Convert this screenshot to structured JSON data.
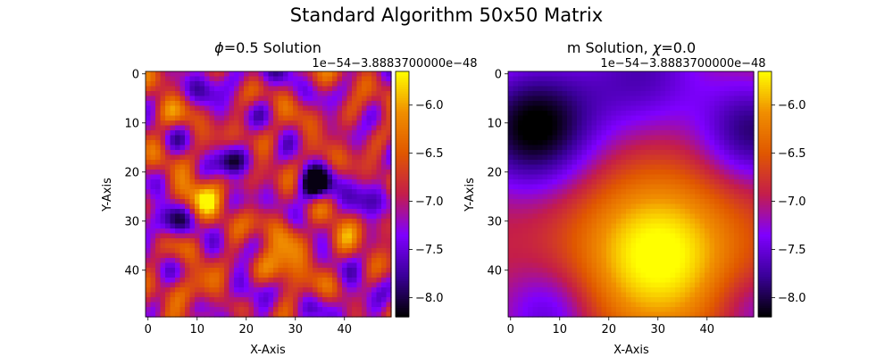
{
  "figure": {
    "suptitle": "Standard Algorithm 50x50 Matrix"
  },
  "colors": {
    "colormap": "gnuplot",
    "stops": [
      "#000000",
      "#3a0099",
      "#7f00ff",
      "#c41d4a",
      "#e05700",
      "#f08f00",
      "#ffff00"
    ]
  },
  "chart_data": [
    {
      "type": "heatmap",
      "title_prefix": "ϕ",
      "title_suffix": "=0.5 Solution",
      "xlabel": "X-Axis",
      "ylabel": "Y-Axis",
      "grid_size": [
        50,
        50
      ],
      "xlim": [
        0,
        49
      ],
      "ylim": [
        49,
        0
      ],
      "x_ticks": [
        "0",
        "10",
        "20",
        "30",
        "40"
      ],
      "y_ticks": [
        "0",
        "10",
        "20",
        "30",
        "40"
      ],
      "colorbar": {
        "offset_label": "1e−54−3.8883700000e−48",
        "range": [
          -8.2,
          -5.65
        ],
        "ticks": [
          "−6.0",
          "−6.5",
          "−7.0",
          "−7.5",
          "−8.0"
        ],
        "tick_values": [
          -6.0,
          -6.5,
          -7.0,
          -7.5,
          -8.0
        ]
      },
      "value_range": [
        -8.2,
        -5.65
      ],
      "notable_features": [
        {
          "x": 34,
          "y": 23,
          "value": -8.2,
          "note": "minimum"
        },
        {
          "x": 17,
          "y": 18,
          "value": -7.9,
          "note": "dark spot"
        },
        {
          "x": 11,
          "y": 25,
          "value": -5.7,
          "note": "bright spot"
        },
        {
          "x": 27,
          "y": 40,
          "value": -5.8,
          "note": "bright streak"
        }
      ]
    },
    {
      "type": "heatmap",
      "title_prefix": "m Solution, ",
      "title_greek": "χ",
      "title_suffix": "=0.0",
      "xlabel": "X-Axis",
      "ylabel": "Y-Axis",
      "grid_size": [
        50,
        50
      ],
      "xlim": [
        0,
        49
      ],
      "ylim": [
        49,
        0
      ],
      "x_ticks": [
        "0",
        "10",
        "20",
        "30",
        "40"
      ],
      "y_ticks": [
        "0",
        "10",
        "20",
        "30",
        "40"
      ],
      "colorbar": {
        "offset_label": "1e−54−3.8883700000e−48",
        "range": [
          -8.2,
          -5.65
        ],
        "ticks": [
          "−6.0",
          "−6.5",
          "−7.0",
          "−7.5",
          "−8.0"
        ],
        "tick_values": [
          -6.0,
          -6.5,
          -7.0,
          -7.5,
          -8.0
        ]
      },
      "value_range": [
        -8.2,
        -5.65
      ],
      "notable_features": [
        {
          "x": 5,
          "y": 11,
          "value": -8.2,
          "note": "minimum"
        },
        {
          "x": 49,
          "y": 12,
          "value": -7.9,
          "note": "dark edge"
        },
        {
          "x": 30,
          "y": 36,
          "value": -5.7,
          "note": "maximum"
        }
      ]
    }
  ]
}
